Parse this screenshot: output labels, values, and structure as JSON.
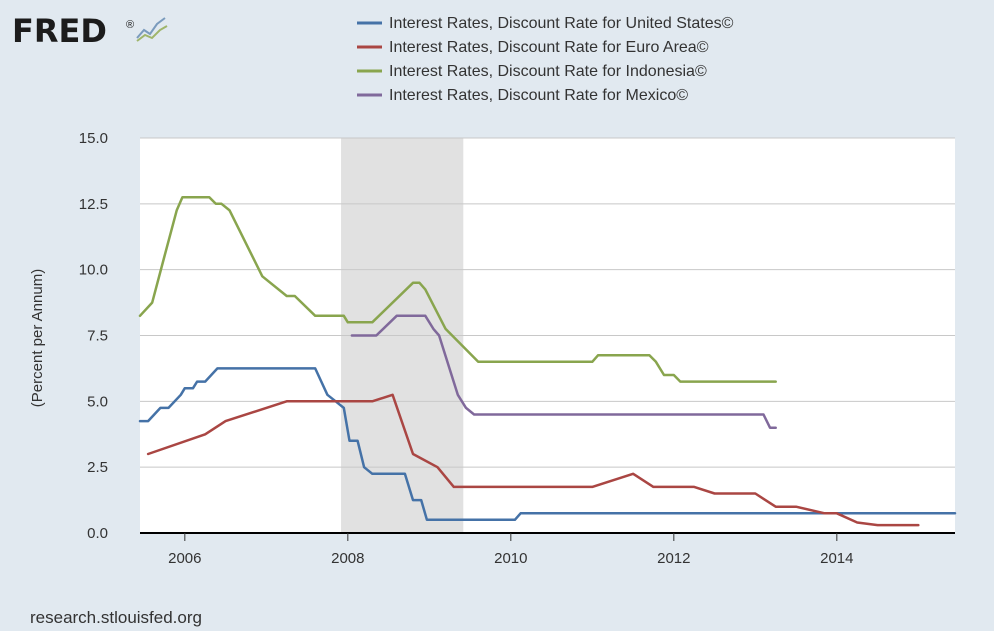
{
  "logo": {
    "text": "FRED",
    "registered": "®",
    "icon": "line-chart-icon"
  },
  "source": "research.stlouisfed.org",
  "chart_data": {
    "type": "line",
    "title": "",
    "xlabel": "",
    "ylabel": "(Percent per Annum)",
    "xlim": [
      2005.45,
      2015.45
    ],
    "ylim": [
      0,
      15
    ],
    "yticks": [
      0,
      2.5,
      5,
      7.5,
      10,
      12.5,
      15
    ],
    "ytick_labels": [
      "0.0",
      "2.5",
      "5.0",
      "7.5",
      "10.0",
      "12.5",
      "15.0"
    ],
    "xticks": [
      2006,
      2008,
      2010,
      2012,
      2014
    ],
    "xtick_labels": [
      "2006",
      "2008",
      "2010",
      "2012",
      "2014"
    ],
    "grid": true,
    "legend_position": "top",
    "recessions": [
      [
        2007.917,
        2009.417
      ]
    ],
    "series": [
      {
        "name": "Interest Rates, Discount Rate for United States©",
        "color": "#4572a7",
        "points": [
          [
            2005.45,
            4.25
          ],
          [
            2005.55,
            4.25
          ],
          [
            2005.7,
            4.75
          ],
          [
            2005.8,
            4.75
          ],
          [
            2005.95,
            5.25
          ],
          [
            2006.0,
            5.5
          ],
          [
            2006.1,
            5.5
          ],
          [
            2006.15,
            5.75
          ],
          [
            2006.25,
            5.75
          ],
          [
            2006.4,
            6.25
          ],
          [
            2007.6,
            6.25
          ],
          [
            2007.75,
            5.25
          ],
          [
            2007.85,
            5.0
          ],
          [
            2007.95,
            4.75
          ],
          [
            2008.02,
            3.5
          ],
          [
            2008.12,
            3.5
          ],
          [
            2008.2,
            2.5
          ],
          [
            2008.3,
            2.25
          ],
          [
            2008.7,
            2.25
          ],
          [
            2008.8,
            1.25
          ],
          [
            2008.9,
            1.25
          ],
          [
            2008.97,
            0.5
          ],
          [
            2010.05,
            0.5
          ],
          [
            2010.12,
            0.75
          ],
          [
            2015.45,
            0.75
          ]
        ]
      },
      {
        "name": "Interest Rates, Discount Rate for Euro Area©",
        "color": "#aa4643",
        "points": [
          [
            2005.55,
            3.0
          ],
          [
            2006.25,
            3.75
          ],
          [
            2006.5,
            4.25
          ],
          [
            2007.25,
            5.0
          ],
          [
            2008.3,
            5.0
          ],
          [
            2008.55,
            5.25
          ],
          [
            2008.8,
            3.0
          ],
          [
            2009.1,
            2.5
          ],
          [
            2009.3,
            1.75
          ],
          [
            2011.0,
            1.75
          ],
          [
            2011.5,
            2.25
          ],
          [
            2011.75,
            1.75
          ],
          [
            2012.25,
            1.75
          ],
          [
            2012.5,
            1.5
          ],
          [
            2013.0,
            1.5
          ],
          [
            2013.25,
            1.0
          ],
          [
            2013.5,
            1.0
          ],
          [
            2013.85,
            0.75
          ],
          [
            2014.0,
            0.75
          ],
          [
            2014.25,
            0.4
          ],
          [
            2014.5,
            0.3
          ],
          [
            2015.0,
            0.3
          ]
        ]
      },
      {
        "name": "Interest Rates, Discount Rate for Indonesia©",
        "color": "#89a54e",
        "points": [
          [
            2005.45,
            8.25
          ],
          [
            2005.6,
            8.75
          ],
          [
            2005.75,
            10.5
          ],
          [
            2005.9,
            12.25
          ],
          [
            2005.97,
            12.75
          ],
          [
            2006.3,
            12.75
          ],
          [
            2006.38,
            12.5
          ],
          [
            2006.45,
            12.5
          ],
          [
            2006.55,
            12.25
          ],
          [
            2006.95,
            9.75
          ],
          [
            2007.25,
            9.0
          ],
          [
            2007.35,
            9.0
          ],
          [
            2007.6,
            8.25
          ],
          [
            2007.95,
            8.25
          ],
          [
            2008.0,
            8.0
          ],
          [
            2008.3,
            8.0
          ],
          [
            2008.8,
            9.5
          ],
          [
            2008.88,
            9.5
          ],
          [
            2008.95,
            9.25
          ],
          [
            2009.2,
            7.75
          ],
          [
            2009.6,
            6.5
          ],
          [
            2011.0,
            6.5
          ],
          [
            2011.07,
            6.75
          ],
          [
            2011.7,
            6.75
          ],
          [
            2011.78,
            6.5
          ],
          [
            2011.88,
            6.0
          ],
          [
            2012.0,
            6.0
          ],
          [
            2012.08,
            5.75
          ],
          [
            2013.25,
            5.75
          ]
        ]
      },
      {
        "name": "Interest Rates, Discount Rate for Mexico©",
        "color": "#80699b",
        "points": [
          [
            2008.05,
            7.5
          ],
          [
            2008.35,
            7.5
          ],
          [
            2008.6,
            8.25
          ],
          [
            2008.95,
            8.25
          ],
          [
            2009.05,
            7.75
          ],
          [
            2009.12,
            7.5
          ],
          [
            2009.35,
            5.25
          ],
          [
            2009.45,
            4.75
          ],
          [
            2009.55,
            4.5
          ],
          [
            2013.1,
            4.5
          ],
          [
            2013.18,
            4.0
          ],
          [
            2013.25,
            4.0
          ]
        ]
      }
    ]
  }
}
